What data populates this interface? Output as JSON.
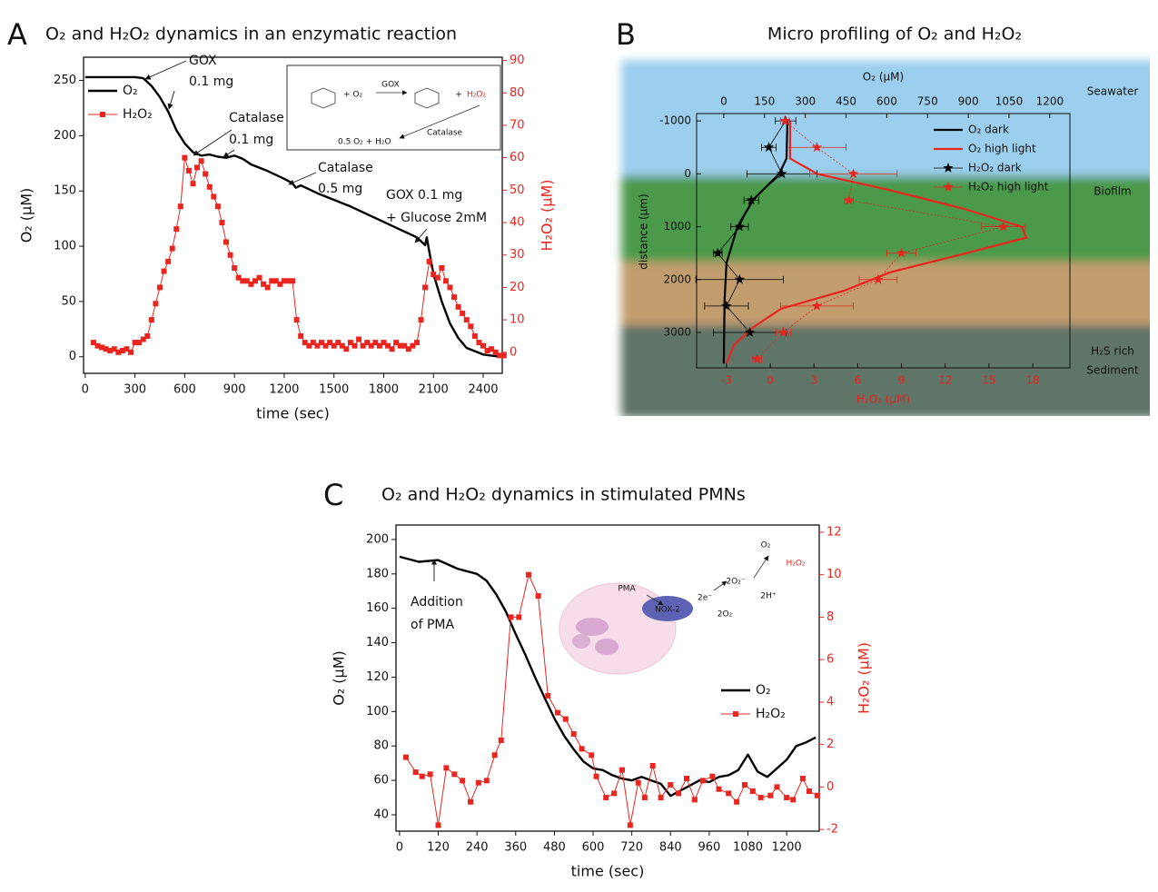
{
  "chart_data": [
    {
      "type": "line",
      "panel": "A",
      "title": "O₂ and H₂O₂ dynamics in an enzymatic reaction",
      "xlabel": "time (sec)",
      "ylabel": "O₂ (µM)",
      "y2label": "H₂O₂ (µM)",
      "xlim": [
        -10,
        2515
      ],
      "xticks": [
        0,
        300,
        600,
        900,
        1200,
        1500,
        1800,
        2100,
        2400
      ],
      "ylim": [
        -15,
        271
      ],
      "yticks": [
        0,
        50,
        100,
        150,
        200,
        250
      ],
      "y2lim": [
        -6.5,
        91
      ],
      "y2ticks": [
        0,
        10,
        20,
        30,
        40,
        50,
        60,
        70,
        80,
        90
      ],
      "legend": "upper left",
      "series": [
        {
          "name": "O₂",
          "color": "#000000",
          "marker": "none",
          "x": [
            0,
            100,
            200,
            300,
            350,
            400,
            450,
            500,
            550,
            600,
            650,
            700,
            750,
            800,
            850,
            900,
            950,
            1000,
            1100,
            1200,
            1250,
            1270,
            1300,
            1400,
            1500,
            1600,
            1700,
            1800,
            1900,
            2000,
            2050,
            2060,
            2075,
            2100,
            2150,
            2200,
            2250,
            2300,
            2400,
            2500
          ],
          "values": [
            253,
            253,
            253,
            253,
            252,
            245,
            235,
            222,
            205,
            193,
            185,
            182,
            183,
            181,
            180,
            182,
            179,
            174,
            168,
            161,
            157,
            153,
            155,
            148,
            142,
            136,
            129,
            122,
            115,
            108,
            101,
            108,
            95,
            75,
            50,
            30,
            17,
            8,
            2,
            0
          ]
        },
        {
          "name": "H₂O₂",
          "color": "#e8251f",
          "marker": "square",
          "axis": "y2",
          "x": [
            50,
            75,
            100,
            125,
            150,
            175,
            200,
            225,
            250,
            275,
            300,
            325,
            350,
            375,
            400,
            425,
            450,
            475,
            500,
            525,
            550,
            575,
            600,
            625,
            650,
            675,
            700,
            725,
            750,
            775,
            800,
            825,
            850,
            875,
            900,
            925,
            950,
            975,
            1000,
            1025,
            1050,
            1075,
            1100,
            1125,
            1150,
            1175,
            1200,
            1225,
            1250,
            1275,
            1300,
            1325,
            1350,
            1375,
            1400,
            1425,
            1450,
            1475,
            1500,
            1525,
            1550,
            1575,
            1600,
            1625,
            1650,
            1675,
            1700,
            1725,
            1750,
            1775,
            1800,
            1825,
            1850,
            1875,
            1900,
            1925,
            1950,
            1975,
            2000,
            2025,
            2050,
            2075,
            2100,
            2125,
            2150,
            2175,
            2200,
            2225,
            2250,
            2275,
            2300,
            2325,
            2350,
            2375,
            2400,
            2425,
            2450,
            2475,
            2500,
            2525
          ],
          "values": [
            3,
            2,
            1.5,
            1,
            0.5,
            1,
            0,
            0.5,
            1,
            0,
            3,
            3,
            4,
            5,
            10,
            15,
            20,
            25,
            28,
            32,
            38,
            45,
            60,
            56,
            52,
            57,
            59,
            55,
            51,
            48,
            45,
            40,
            34,
            30,
            26,
            23,
            22,
            22,
            21,
            22,
            23,
            21,
            20,
            22,
            22,
            21,
            22,
            22,
            22,
            10,
            5,
            3,
            2,
            3,
            2,
            3,
            2,
            3,
            2,
            3,
            2,
            1,
            3,
            2,
            4,
            2,
            3,
            2,
            3,
            2,
            3,
            2,
            1,
            3,
            2,
            2,
            1,
            2,
            3,
            10,
            20,
            28,
            24,
            23,
            26,
            22,
            20,
            17,
            14,
            12,
            10,
            8,
            5,
            3,
            2,
            0.5,
            1,
            0,
            -1,
            -1
          ]
        }
      ],
      "annotations": [
        [
          "GOX",
          "0.1 mg"
        ],
        [
          "Catalase",
          "0.1 mg"
        ],
        [
          "Catalase",
          "0.5 mg"
        ],
        [
          "GOX 0.1 mg",
          "+ Glucose 2mM"
        ]
      ],
      "inset": [
        "+ O₂",
        "GOX",
        "+",
        "H₂O₂",
        "0.5 O₂ + H₂O",
        "Catalase"
      ]
    },
    {
      "type": "profile",
      "panel": "B",
      "title": "Micro profiling of O₂ and H₂O₂",
      "xlabel": "O₂ (µM)",
      "x2label": "H₂O₂ (µM)",
      "ylabel": "distance (µm)",
      "xlim": [
        -100,
        1274
      ],
      "xticks": [
        0,
        150,
        300,
        450,
        600,
        750,
        900,
        1050,
        1200
      ],
      "x2lim": [
        -5.05,
        20.55
      ],
      "x2ticks": [
        -3,
        0,
        3,
        6,
        9,
        12,
        15,
        18
      ],
      "x2color": "#e8251f",
      "ylim": [
        -1140,
        3670
      ],
      "yinvert": true,
      "yticks": [
        -1000,
        0,
        1000,
        2000,
        3000
      ],
      "legend": "upper right",
      "zones": [
        [
          "Seawater"
        ],
        [
          "Biofilm"
        ],
        [
          "H₂S rich",
          "Sediment"
        ]
      ],
      "series": [
        {
          "name": "O₂ dark",
          "color": "#000000",
          "marker": "none",
          "depths": [
            -1000,
            -290,
            0,
            480,
            1000,
            1690,
            2380,
            3590
          ],
          "values": [
            234,
            231,
            204,
            110,
            50,
            10,
            3,
            0
          ]
        },
        {
          "name": "O₂ high light",
          "color": "#e8251f",
          "marker": "none",
          "depths": [
            -1000,
            -290,
            0,
            310,
            655,
            1000,
            1207,
            1517,
            1862,
            2207,
            2552,
            2897,
            3241,
            3586
          ],
          "values": [
            244,
            244,
            344,
            612,
            880,
            1097,
            1114,
            880,
            612,
            445,
            211,
            110,
            37,
            10
          ]
        },
        {
          "name": "H₂O₂ dark",
          "color": "#000000",
          "marker": "star",
          "axis": "x2",
          "depths": [
            -1000,
            -500,
            0,
            500,
            1000,
            1500,
            2000,
            2500,
            3000
          ],
          "values": [
            1.05,
            -0.1,
            0.8,
            -1.3,
            -2.1,
            -3.6,
            -2.1,
            -3,
            -1.4
          ],
          "errors": [
            0.7,
            0.5,
            2.4,
            0.5,
            0.6,
            0.3,
            3,
            1.5,
            2.5
          ]
        },
        {
          "name": "H₂O₂ high light",
          "color": "#e8251f",
          "marker": "star",
          "axis": "x2",
          "depths": [
            -1000,
            -500,
            0,
            500,
            1000,
            1500,
            2000,
            2500,
            3000,
            3500
          ],
          "values": [
            1,
            3.2,
            5.7,
            5.4,
            16,
            9,
            7.4,
            3.2,
            0.9,
            -0.9
          ],
          "errors": [
            0.3,
            2,
            3,
            0.3,
            1.5,
            1,
            1.3,
            2.5,
            0.5,
            0.3
          ]
        }
      ]
    },
    {
      "type": "line",
      "panel": "C",
      "title": "O₂ and H₂O₂ dynamics in stimulated PMNs",
      "xlabel": "time (sec)",
      "ylabel": "O₂ (µM)",
      "y2label": "H₂O₂ (µM)",
      "xlim": [
        -11,
        1301
      ],
      "xticks": [
        0,
        120,
        240,
        360,
        480,
        600,
        720,
        840,
        960,
        1080,
        1200
      ],
      "ylim": [
        30.5,
        208.4
      ],
      "yticks": [
        40,
        60,
        80,
        100,
        120,
        140,
        160,
        180,
        200
      ],
      "y2lim": [
        -2.08,
        12.34
      ],
      "y2ticks": [
        -2,
        0,
        2,
        4,
        6,
        8,
        10,
        12
      ],
      "legend": "lower right",
      "series": [
        {
          "name": "O₂",
          "color": "#000000",
          "marker": "none",
          "x": [
            0,
            60,
            120,
            180,
            240,
            270,
            300,
            330,
            360,
            390,
            420,
            450,
            480,
            510,
            540,
            570,
            600,
            630,
            660,
            690,
            720,
            750,
            780,
            810,
            840,
            870,
            900,
            930,
            960,
            990,
            1020,
            1050,
            1080,
            1110,
            1140,
            1170,
            1200,
            1230,
            1260,
            1290
          ],
          "values": [
            190,
            187,
            188,
            183,
            180,
            176,
            168,
            158,
            145,
            133,
            120,
            108,
            96,
            86,
            78,
            71,
            67,
            66,
            63,
            61,
            60,
            62,
            60,
            58,
            51,
            54,
            57,
            60,
            59,
            62,
            63,
            66,
            75,
            65,
            62,
            67,
            72,
            80,
            82,
            85
          ]
        },
        {
          "name": "H₂O₂",
          "color": "#e8251f",
          "marker": "square",
          "axis": "y2",
          "x": [
            20,
            50,
            70,
            95,
            120,
            145,
            170,
            195,
            220,
            245,
            270,
            295,
            315,
            345,
            370,
            400,
            430,
            460,
            490,
            515,
            540,
            565,
            595,
            610,
            640,
            665,
            690,
            715,
            740,
            760,
            785,
            810,
            840,
            865,
            890,
            915,
            940,
            970,
            990,
            1020,
            1045,
            1070,
            1095,
            1120,
            1150,
            1170,
            1200,
            1220,
            1250,
            1270,
            1295
          ],
          "values": [
            1.4,
            0.7,
            0.5,
            0.6,
            -1.8,
            0.9,
            0.6,
            0.3,
            -0.7,
            0.2,
            0.3,
            1.5,
            2.2,
            8,
            8,
            10,
            9,
            4.3,
            3.5,
            3.2,
            2.5,
            1.8,
            1.5,
            0.5,
            -0.5,
            -0.3,
            0.8,
            -1.8,
            0.2,
            -0.5,
            1,
            -0.5,
            0.1,
            -0.3,
            0.4,
            -0.6,
            0.3,
            0.5,
            -0.1,
            -0.3,
            -0.7,
            0.1,
            -0.2,
            -0.5,
            -0.4,
            0,
            -0.5,
            -0.6,
            0.4,
            -0.2,
            -0.4
          ]
        }
      ],
      "annotations": [
        [
          "Addition",
          "of PMA"
        ]
      ],
      "inset": [
        "PMA",
        "NOX-2",
        "2e⁻",
        "2O₂⁻",
        "2O₂",
        "2H⁺",
        "O₂",
        "H₂O₂"
      ]
    }
  ]
}
